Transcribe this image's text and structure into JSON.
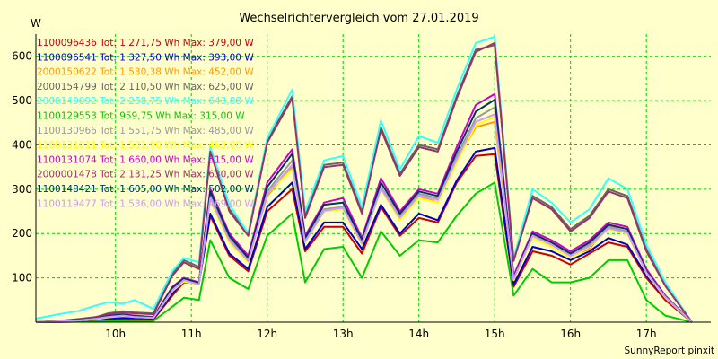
{
  "chart_data": {
    "type": "line",
    "title": "Wechselrichtervergleich vom 27.01.2019",
    "ylabel": "W",
    "xlabel": "",
    "footer": "SunnyReport pinxit",
    "ylim": [
      0,
      650
    ],
    "xlim": [
      8.95,
      17.85
    ],
    "yticks": [
      100,
      200,
      300,
      400,
      500,
      600
    ],
    "xticks": [
      {
        "value": 10,
        "label": "10h"
      },
      {
        "value": 11,
        "label": "11h"
      },
      {
        "value": 12,
        "label": "12h"
      },
      {
        "value": 13,
        "label": "13h"
      },
      {
        "value": 14,
        "label": "14h"
      },
      {
        "value": 15,
        "label": "15h"
      },
      {
        "value": 16,
        "label": "16h"
      },
      {
        "value": 17,
        "label": "17h"
      }
    ],
    "grid": true,
    "legend_position": "top-left",
    "x": [
      8.95,
      9.25,
      9.5,
      9.75,
      9.9,
      10.1,
      10.25,
      10.5,
      10.75,
      10.9,
      11.1,
      11.25,
      11.5,
      11.75,
      12.0,
      12.33,
      12.5,
      12.75,
      13.0,
      13.25,
      13.5,
      13.75,
      14.0,
      14.25,
      14.5,
      14.75,
      15.0,
      15.25,
      15.5,
      15.75,
      16.0,
      16.25,
      16.5,
      16.75,
      17.0,
      17.25,
      17.6
    ],
    "series": [
      {
        "name": "1100096436 Tot: 1.271,75 Wh Max: 379,00 W",
        "color": "#cc0000",
        "values": [
          0,
          1,
          2,
          5,
          8,
          8,
          7,
          6,
          60,
          90,
          88,
          240,
          150,
          115,
          250,
          300,
          160,
          215,
          215,
          155,
          260,
          195,
          235,
          225,
          315,
          375,
          379,
          80,
          160,
          150,
          130,
          155,
          180,
          170,
          100,
          50,
          0
        ]
      },
      {
        "name": "1100096541 Tot: 1.327,50 Wh Max: 393,00 W",
        "color": "#0000cc",
        "values": [
          0,
          1,
          2,
          5,
          8,
          10,
          10,
          8,
          65,
          95,
          88,
          245,
          155,
          120,
          260,
          315,
          165,
          225,
          225,
          165,
          265,
          200,
          245,
          230,
          320,
          385,
          393,
          85,
          170,
          160,
          140,
          160,
          190,
          175,
          105,
          55,
          0
        ]
      },
      {
        "name": "2000150622 Tot: 1.530,38 Wh Max: 452,00 W",
        "color": "#ff9900",
        "values": [
          0,
          2,
          4,
          7,
          12,
          18,
          15,
          12,
          75,
          95,
          90,
          280,
          185,
          140,
          285,
          350,
          185,
          250,
          255,
          180,
          300,
          235,
          285,
          270,
          365,
          440,
          452,
          100,
          195,
          180,
          150,
          165,
          220,
          200,
          115,
          60,
          0
        ]
      },
      {
        "name": "2000154799 Tot: 2.110,50 Wh Max: 625,00 W",
        "color": "#666666",
        "values": [
          0,
          3,
          7,
          12,
          20,
          25,
          22,
          20,
          110,
          140,
          125,
          390,
          255,
          200,
          410,
          510,
          240,
          355,
          360,
          250,
          440,
          335,
          400,
          390,
          510,
          615,
          625,
          140,
          285,
          260,
          210,
          240,
          300,
          285,
          165,
          85,
          0
        ]
      },
      {
        "name": "2000149092 Tot: 2.258,75 Wh Max: 643,88 W",
        "color": "#33ffff",
        "values": [
          8,
          18,
          25,
          38,
          45,
          42,
          50,
          30,
          115,
          145,
          135,
          395,
          265,
          200,
          415,
          525,
          250,
          365,
          375,
          260,
          455,
          345,
          420,
          405,
          525,
          630,
          644,
          145,
          300,
          270,
          225,
          255,
          325,
          300,
          175,
          90,
          0
        ]
      },
      {
        "name": "1100129553 Tot: 959,75 Wh Max: 315,00 W",
        "color": "#00cc00",
        "values": [
          0,
          0,
          1,
          2,
          3,
          3,
          3,
          3,
          35,
          55,
          50,
          185,
          100,
          75,
          195,
          245,
          90,
          165,
          170,
          100,
          205,
          150,
          185,
          180,
          240,
          290,
          315,
          60,
          120,
          90,
          90,
          100,
          140,
          140,
          50,
          15,
          0
        ]
      },
      {
        "name": "1100130966 Tot: 1.551,75 Wh Max: 485,00 W",
        "color": "#999999",
        "values": [
          0,
          2,
          5,
          8,
          12,
          15,
          12,
          10,
          75,
          95,
          85,
          285,
          190,
          140,
          295,
          365,
          185,
          255,
          260,
          180,
          305,
          240,
          290,
          280,
          375,
          460,
          485,
          100,
          195,
          175,
          150,
          175,
          215,
          205,
          115,
          60,
          0
        ]
      },
      {
        "name": "1100131011 Tot: 1.501,00 Wh Max: 463,00 W",
        "color": "#ffff00",
        "values": [
          0,
          2,
          4,
          7,
          11,
          14,
          12,
          10,
          70,
          92,
          85,
          275,
          180,
          135,
          290,
          345,
          180,
          250,
          255,
          175,
          300,
          230,
          280,
          270,
          360,
          445,
          463,
          95,
          190,
          170,
          145,
          170,
          210,
          200,
          110,
          55,
          0
        ]
      },
      {
        "name": "1100131074 Tot: 1.660,00 Wh Max: 515,00 W",
        "color": "#cc00cc",
        "values": [
          0,
          3,
          6,
          10,
          15,
          18,
          15,
          12,
          80,
          100,
          90,
          300,
          200,
          150,
          315,
          390,
          195,
          270,
          280,
          190,
          325,
          250,
          300,
          290,
          395,
          490,
          515,
          105,
          205,
          185,
          160,
          185,
          225,
          215,
          120,
          60,
          0
        ]
      },
      {
        "name": "2000001478 Tot: 2.131,25 Wh Max: 630,00 W",
        "color": "#993366",
        "values": [
          0,
          3,
          6,
          12,
          18,
          22,
          20,
          18,
          105,
          135,
          120,
          385,
          250,
          195,
          405,
          505,
          235,
          350,
          355,
          245,
          435,
          330,
          395,
          385,
          505,
          610,
          630,
          138,
          280,
          255,
          205,
          235,
          295,
          280,
          160,
          82,
          0
        ]
      },
      {
        "name": "1100148421 Tot: 1.605,00 Wh Max: 502,00 W",
        "color": "#003366",
        "values": [
          0,
          2,
          5,
          9,
          14,
          17,
          14,
          11,
          78,
          98,
          88,
          295,
          195,
          145,
          305,
          380,
          190,
          265,
          270,
          185,
          315,
          245,
          295,
          285,
          385,
          475,
          502,
          100,
          200,
          180,
          155,
          180,
          220,
          210,
          115,
          58,
          0
        ]
      },
      {
        "name": "1100119477 Tot: 1.536,00 Wh Max: 469,00 W",
        "color": "#cc99ff",
        "values": [
          0,
          2,
          4,
          8,
          12,
          15,
          12,
          10,
          72,
          95,
          85,
          280,
          185,
          138,
          290,
          355,
          182,
          252,
          258,
          178,
          302,
          236,
          286,
          276,
          368,
          452,
          469,
          98,
          195,
          175,
          150,
          172,
          212,
          202,
          112,
          57,
          0
        ]
      }
    ]
  }
}
